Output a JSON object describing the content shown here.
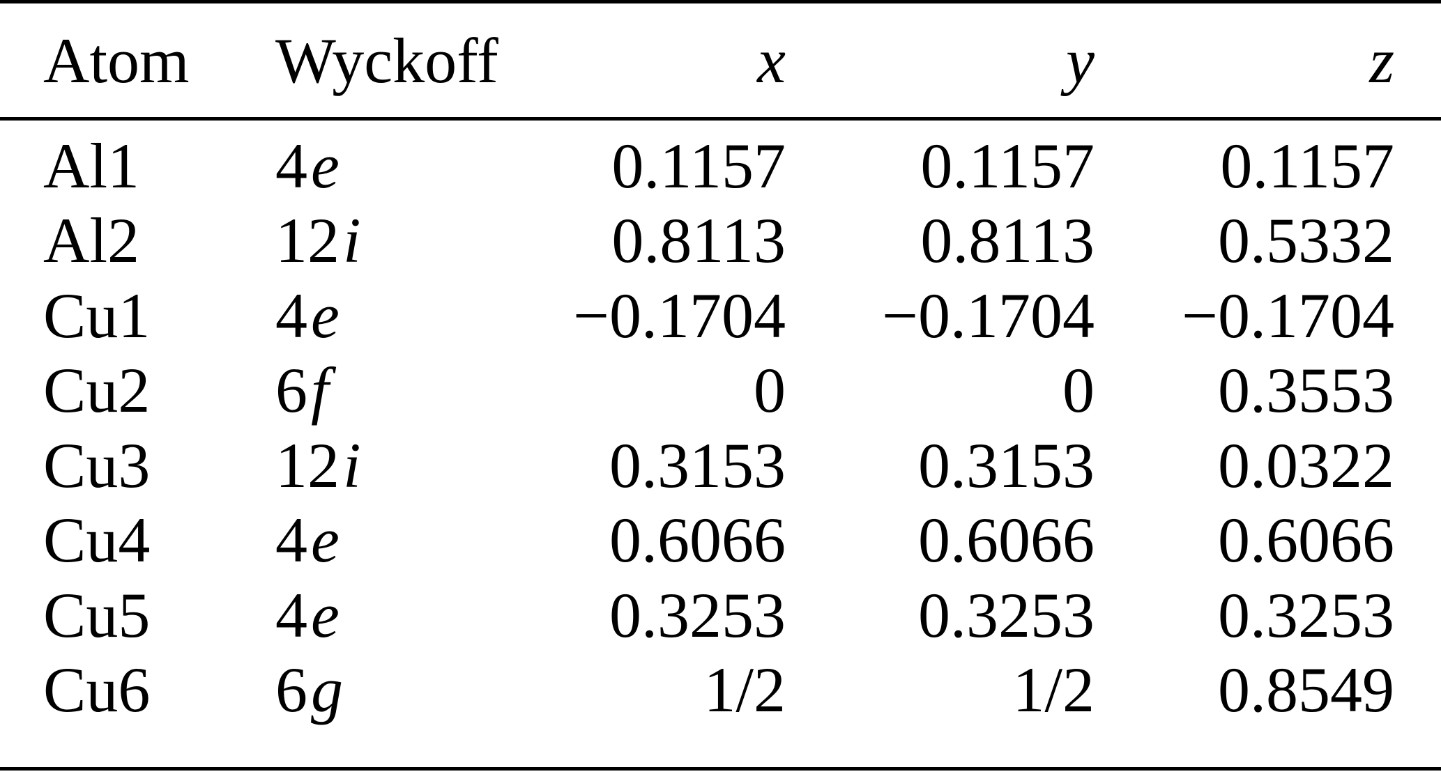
{
  "colors": {
    "background": "#ffffff",
    "text": "#000000",
    "rule": "#000000"
  },
  "table": {
    "headers": {
      "atom": "Atom",
      "wyckoff": "Wyckoff",
      "x": "x",
      "y": "y",
      "z": "z"
    },
    "rows": [
      {
        "atom": "Al1",
        "wyckoff_mult": "4",
        "wyckoff_letter": "e",
        "x": "0.1157",
        "y": "0.1157",
        "z": "0.1157"
      },
      {
        "atom": "Al2",
        "wyckoff_mult": "12",
        "wyckoff_letter": "i",
        "x": "0.8113",
        "y": "0.8113",
        "z": "0.5332"
      },
      {
        "atom": "Cu1",
        "wyckoff_mult": "4",
        "wyckoff_letter": "e",
        "x": "−0.1704",
        "y": "−0.1704",
        "z": "−0.1704"
      },
      {
        "atom": "Cu2",
        "wyckoff_mult": "6",
        "wyckoff_letter": "f",
        "x": "0",
        "y": "0",
        "z": "0.3553"
      },
      {
        "atom": "Cu3",
        "wyckoff_mult": "12",
        "wyckoff_letter": "i",
        "x": "0.3153",
        "y": "0.3153",
        "z": "0.0322"
      },
      {
        "atom": "Cu4",
        "wyckoff_mult": "4",
        "wyckoff_letter": "e",
        "x": "0.6066",
        "y": "0.6066",
        "z": "0.6066"
      },
      {
        "atom": "Cu5",
        "wyckoff_mult": "4",
        "wyckoff_letter": "e",
        "x": "0.3253",
        "y": "0.3253",
        "z": "0.3253"
      },
      {
        "atom": "Cu6",
        "wyckoff_mult": "6",
        "wyckoff_letter": "g",
        "x": "1/2",
        "y": "1/2",
        "z": "0.8549"
      }
    ]
  }
}
